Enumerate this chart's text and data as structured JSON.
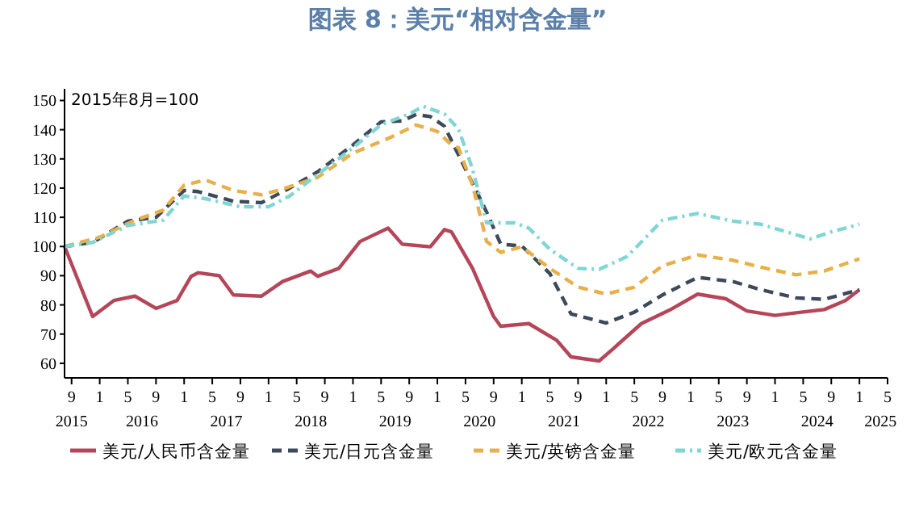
{
  "chart_data": {
    "type": "line",
    "title": "图表 8：美元“相对含金量”",
    "xlim": [
      "2015-08",
      "2025-05"
    ],
    "xticks": [
      {
        "value": "2015-09",
        "label": "9"
      },
      {
        "value": "2016-01",
        "label": "1"
      },
      {
        "value": "2016-05",
        "label": "5"
      },
      {
        "value": "2016-09",
        "label": "9"
      },
      {
        "value": "2017-01",
        "label": "1"
      },
      {
        "value": "2017-05",
        "label": "5"
      },
      {
        "value": "2017-09",
        "label": "9"
      },
      {
        "value": "2018-01",
        "label": "1"
      },
      {
        "value": "2018-05",
        "label": "5"
      },
      {
        "value": "2018-09",
        "label": "9"
      },
      {
        "value": "2019-01",
        "label": "1"
      },
      {
        "value": "2019-05",
        "label": "5"
      },
      {
        "value": "2019-09",
        "label": "9"
      },
      {
        "value": "2020-01",
        "label": "1"
      },
      {
        "value": "2020-05",
        "label": "5"
      },
      {
        "value": "2020-09",
        "label": "9"
      },
      {
        "value": "2021-01",
        "label": "1"
      },
      {
        "value": "2021-05",
        "label": "5"
      },
      {
        "value": "2021-09",
        "label": "9"
      },
      {
        "value": "2022-01",
        "label": "1"
      },
      {
        "value": "2022-05",
        "label": "5"
      },
      {
        "value": "2022-09",
        "label": "9"
      },
      {
        "value": "2023-01",
        "label": "1"
      },
      {
        "value": "2023-05",
        "label": "5"
      },
      {
        "value": "2023-09",
        "label": "9"
      },
      {
        "value": "2024-01",
        "label": "1"
      },
      {
        "value": "2024-05",
        "label": "5"
      },
      {
        "value": "2024-09",
        "label": "9"
      },
      {
        "value": "2025-01",
        "label": "1"
      },
      {
        "value": "2025-05",
        "label": "5"
      }
    ],
    "ylim": [
      55,
      154
    ],
    "yticks": [
      60,
      70,
      80,
      90,
      100,
      110,
      120,
      130,
      140,
      150
    ],
    "grid": false,
    "legend": "bottom",
    "annotations": [
      "2015年8月=100",
      "2015",
      "2016",
      "2017",
      "2018",
      "2019",
      "2020",
      "2021",
      "2022",
      "2023",
      "2024",
      "2025"
    ],
    "series": [
      {
        "name": "美元/人民币含金量",
        "color": "#b5465a",
        "line_style": "solid",
        "x": [
          "2015-08",
          "2015-12",
          "2016-03",
          "2016-06",
          "2016-09",
          "2016-12",
          "2017-02",
          "2017-03",
          "2017-06",
          "2017-08",
          "2017-12",
          "2018-03",
          "2018-07",
          "2018-08",
          "2018-11",
          "2019-02",
          "2019-06",
          "2019-08",
          "2019-12",
          "2020-02",
          "2020-03",
          "2020-06",
          "2020-09",
          "2020-10",
          "2021-02",
          "2021-06",
          "2021-08",
          "2021-12",
          "2022-02",
          "2022-06",
          "2022-10",
          "2023-02",
          "2023-06",
          "2023-09",
          "2024-01",
          "2024-04",
          "2024-08",
          "2024-11",
          "2025-01"
        ],
        "values": [
          100,
          76,
          81.5,
          83,
          78.8,
          81.5,
          89.8,
          91,
          90,
          83.4,
          83,
          88,
          91.6,
          89.8,
          92.5,
          101.7,
          106.3,
          100.8,
          99.9,
          105.8,
          105,
          92.5,
          76,
          72.7,
          73.6,
          67.8,
          62.2,
          60.8,
          65,
          73.6,
          78.2,
          83.7,
          82.1,
          77.9,
          76.4,
          77.3,
          78.4,
          81.5,
          85.2
        ]
      },
      {
        "name": "美元/日元含金量",
        "color": "#3d4a5c",
        "line_style": "dashed",
        "x": [
          "2015-08",
          "2015-12",
          "2016-05",
          "2016-09",
          "2017-01",
          "2017-03",
          "2017-08",
          "2017-12",
          "2018-04",
          "2018-08",
          "2019-01",
          "2019-05",
          "2019-08",
          "2019-10",
          "2019-12",
          "2020-02",
          "2020-05",
          "2020-08",
          "2020-10",
          "2021-01",
          "2021-05",
          "2021-08",
          "2022-01",
          "2022-05",
          "2022-09",
          "2023-02",
          "2023-07",
          "2023-11",
          "2024-04",
          "2024-08",
          "2025-01"
        ],
        "values": [
          100,
          101.4,
          108.7,
          110,
          119.2,
          118.8,
          115.5,
          115,
          120,
          125.6,
          134.8,
          142.7,
          143,
          145.2,
          144.5,
          141.2,
          126.5,
          111.8,
          100.8,
          100.2,
          90.7,
          76.9,
          73.8,
          77.5,
          83.4,
          89.4,
          88,
          85.2,
          82.4,
          81.9,
          85.2
        ]
      },
      {
        "name": "美元/英镑含金量",
        "color": "#e8b04a",
        "line_style": "dashed",
        "x": [
          "2015-08",
          "2016-01",
          "2016-06",
          "2016-10",
          "2017-01",
          "2017-04",
          "2017-08",
          "2017-12",
          "2018-03",
          "2018-08",
          "2019-01",
          "2019-06",
          "2019-10",
          "2020-01",
          "2020-03",
          "2020-04",
          "2020-06",
          "2020-08",
          "2020-10",
          "2021-01",
          "2021-05",
          "2021-09",
          "2022-01",
          "2022-05",
          "2022-09",
          "2023-02",
          "2023-07",
          "2023-11",
          "2024-04",
          "2024-08",
          "2025-01"
        ],
        "values": [
          100,
          103.2,
          109,
          112.4,
          121,
          122.8,
          119.2,
          117.7,
          119.7,
          123.7,
          132,
          137,
          141.6,
          139.4,
          134.8,
          133.8,
          121,
          101.7,
          98,
          99.9,
          92.5,
          86.1,
          83.7,
          86.1,
          93.4,
          97.1,
          95.3,
          92.9,
          90.3,
          91.6,
          95.8
        ]
      },
      {
        "name": "美元/欧元含金量",
        "color": "#7fd6d4",
        "line_style": "dashdot",
        "x": [
          "2015-08",
          "2015-12",
          "2016-05",
          "2016-10",
          "2017-01",
          "2017-04",
          "2017-09",
          "2018-01",
          "2018-04",
          "2018-08",
          "2019-01",
          "2019-05",
          "2019-09",
          "2019-11",
          "2020-02",
          "2020-04",
          "2020-06",
          "2020-08",
          "2020-12",
          "2021-02",
          "2021-05",
          "2021-09",
          "2021-12",
          "2022-04",
          "2022-09",
          "2023-02",
          "2023-07",
          "2023-11",
          "2024-06",
          "2024-09",
          "2025-01"
        ],
        "values": [
          100,
          101.4,
          107.2,
          109,
          117.3,
          116.4,
          113.6,
          113.6,
          117.3,
          124.7,
          133.8,
          141.7,
          145.4,
          148,
          145.4,
          140.3,
          126.5,
          108.1,
          108.1,
          106.3,
          99,
          92.5,
          92.2,
          96.6,
          109,
          111.3,
          108.7,
          107.6,
          102.6,
          105,
          107.6
        ]
      }
    ]
  }
}
